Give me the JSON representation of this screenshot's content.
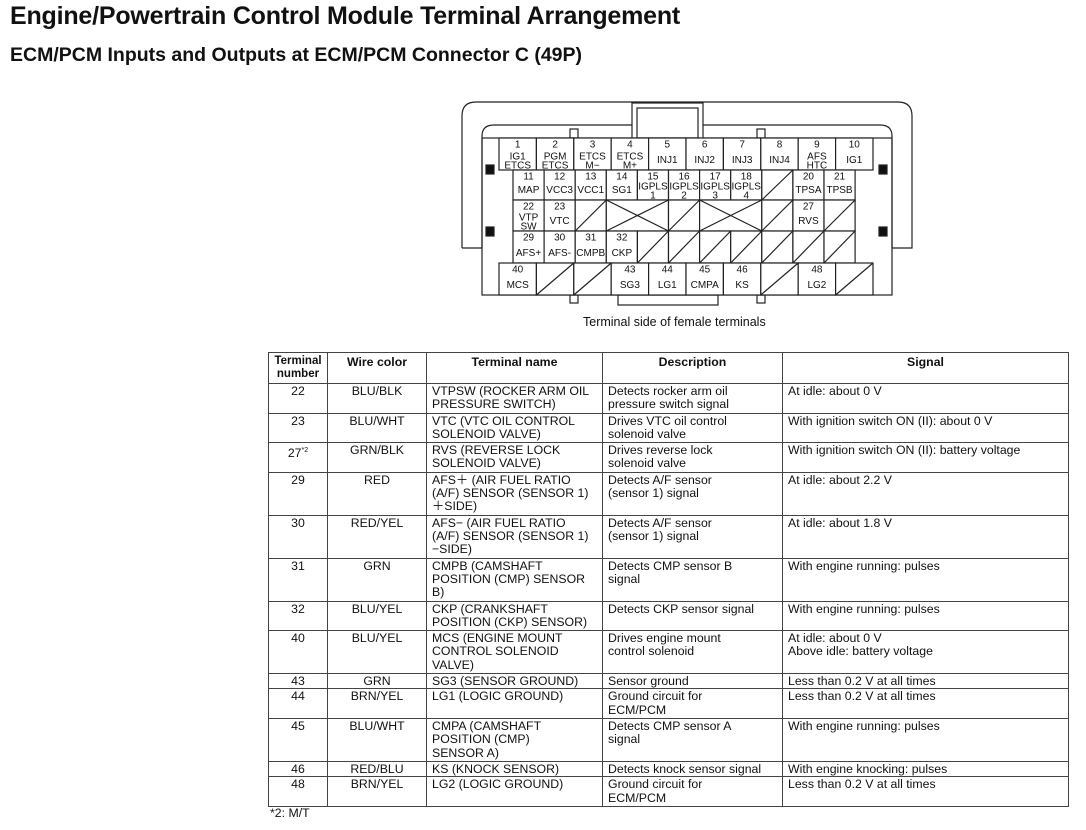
{
  "title": "Engine/Powertrain Control Module Terminal Arrangement",
  "subtitle": "ECM/PCM Inputs and Outputs at ECM/PCM Connector C (49P)",
  "connector": {
    "caption": "Terminal side of female terminals",
    "rows": [
      [
        {
          "n": "1",
          "l": "IG1\nETCS"
        },
        {
          "n": "2",
          "l": "PGM\nETCS"
        },
        {
          "n": "3",
          "l": "ETCS\nM−"
        },
        {
          "n": "4",
          "l": "ETCS\nM+"
        },
        {
          "n": "5",
          "l": "INJ1"
        },
        {
          "n": "6",
          "l": "INJ2"
        },
        {
          "n": "7",
          "l": "INJ3"
        },
        {
          "n": "8",
          "l": "INJ4"
        },
        {
          "n": "9",
          "l": "AFS\nHTC"
        },
        {
          "n": "10",
          "l": "IG1"
        }
      ],
      [
        {
          "n": "11",
          "l": "MAP"
        },
        {
          "n": "12",
          "l": "VCC3"
        },
        {
          "n": "13",
          "l": "VCC1"
        },
        {
          "n": "14",
          "l": "SG1"
        },
        {
          "n": "15",
          "l": "IGPLS\n1"
        },
        {
          "n": "16",
          "l": "IGPLS\n2"
        },
        {
          "n": "17",
          "l": "IGPLS\n3"
        },
        {
          "n": "18",
          "l": "IGPLS\n4"
        },
        {
          "kind": "empty"
        },
        {
          "n": "20",
          "l": "TPSA"
        },
        {
          "n": "21",
          "l": "TPSB"
        }
      ],
      [
        {
          "n": "22",
          "l": "VTP\nSW"
        },
        {
          "n": "23",
          "l": "VTC"
        },
        {
          "kind": "empty"
        },
        {
          "kind": "blocked",
          "span": 2
        },
        {
          "kind": "empty"
        },
        {
          "kind": "blocked",
          "span": 2
        },
        {
          "kind": "empty"
        },
        {
          "n": "27",
          "l": "RVS"
        },
        {
          "kind": "empty"
        }
      ],
      [
        {
          "n": "29",
          "l": "AFS+"
        },
        {
          "n": "30",
          "l": "AFS-"
        },
        {
          "n": "31",
          "l": "CMPB"
        },
        {
          "n": "32",
          "l": "CKP"
        },
        {
          "kind": "empty"
        },
        {
          "kind": "empty"
        },
        {
          "kind": "empty"
        },
        {
          "kind": "empty"
        },
        {
          "kind": "empty"
        },
        {
          "kind": "empty"
        },
        {
          "kind": "empty"
        }
      ],
      [
        {
          "n": "40",
          "l": "MCS"
        },
        {
          "kind": "empty"
        },
        {
          "kind": "empty"
        },
        {
          "n": "43",
          "l": "SG3"
        },
        {
          "n": "44",
          "l": "LG1"
        },
        {
          "n": "45",
          "l": "CMPA"
        },
        {
          "n": "46",
          "l": "KS"
        },
        {
          "kind": "empty"
        },
        {
          "n": "48",
          "l": "LG2"
        },
        {
          "kind": "empty"
        }
      ]
    ]
  },
  "table": {
    "headers": [
      "Terminal\nnumber",
      "Wire color",
      "Terminal name",
      "Description",
      "Signal"
    ],
    "rows": [
      {
        "num": "22",
        "note": "",
        "wire": "BLU/BLK",
        "name": "VTPSW (ROCKER ARM OIL\nPRESSURE SWITCH)",
        "desc": "Detects rocker arm oil\npressure switch signal",
        "signal": "At idle: about 0 V"
      },
      {
        "num": "23",
        "note": "",
        "wire": "BLU/WHT",
        "name": "VTC (VTC OIL CONTROL\nSOLENOID VALVE)",
        "desc": "Drives VTC oil control\nsolenoid valve",
        "signal": "With ignition switch ON (II): about 0 V"
      },
      {
        "num": "27",
        "note": "*2",
        "wire": "GRN/BLK",
        "name": "RVS (REVERSE LOCK\nSOLENOID VALVE)",
        "desc": "Drives reverse lock\nsolenoid valve",
        "signal": "With ignition switch ON (II): battery voltage"
      },
      {
        "num": "29",
        "note": "",
        "wire": "RED",
        "name": "AFS＋ (AIR FUEL RATIO\n(A/F) SENSOR (SENSOR 1)\n＋SIDE)",
        "desc": "Detects A/F sensor\n(sensor 1) signal",
        "signal": "At idle: about 2.2 V"
      },
      {
        "num": "30",
        "note": "",
        "wire": "RED/YEL",
        "name": "AFS− (AIR FUEL RATIO\n(A/F) SENSOR (SENSOR 1)\n−SIDE)",
        "desc": "Detects A/F sensor\n(sensor 1) signal",
        "signal": "At idle: about 1.8 V"
      },
      {
        "num": "31",
        "note": "",
        "wire": "GRN",
        "name": "CMPB (CAMSHAFT\nPOSITION (CMP) SENSOR\nB)",
        "desc": "Detects CMP sensor B\nsignal",
        "signal": "With engine running: pulses"
      },
      {
        "num": "32",
        "note": "",
        "wire": "BLU/YEL",
        "name": "CKP (CRANKSHAFT\nPOSITION (CKP) SENSOR)",
        "desc": "Detects CKP sensor signal",
        "signal": "With engine running: pulses"
      },
      {
        "num": "40",
        "note": "",
        "wire": "BLU/YEL",
        "name": "MCS (ENGINE MOUNT\nCONTROL SOLENOID\nVALVE)",
        "desc": "Drives engine mount\ncontrol solenoid",
        "signal": "At idle: about 0 V\nAbove idle: battery voltage"
      },
      {
        "num": "43",
        "note": "",
        "wire": "GRN",
        "name": "SG3 (SENSOR GROUND)",
        "desc": "Sensor ground",
        "signal": "Less than 0.2 V at all times"
      },
      {
        "num": "44",
        "note": "",
        "wire": "BRN/YEL",
        "name": "LG1 (LOGIC GROUND)",
        "desc": "Ground circuit for\nECM/PCM",
        "signal": "Less than 0.2 V at all times"
      },
      {
        "num": "45",
        "note": "",
        "wire": "BLU/WHT",
        "name": "CMPA (CAMSHAFT\nPOSITION (CMP)\nSENSOR A)",
        "desc": "Detects CMP sensor A\nsignal",
        "signal": "With engine running: pulses"
      },
      {
        "num": "46",
        "note": "",
        "wire": "RED/BLU",
        "name": "KS (KNOCK SENSOR)",
        "desc": "Detects knock sensor signal",
        "signal": "With engine knocking: pulses"
      },
      {
        "num": "48",
        "note": "",
        "wire": "BRN/YEL",
        "name": "LG2 (LOGIC GROUND)",
        "desc": "Ground circuit for\nECM/PCM",
        "signal": "Less than 0.2 V at all times"
      }
    ],
    "footnote": "*2: M/T"
  }
}
